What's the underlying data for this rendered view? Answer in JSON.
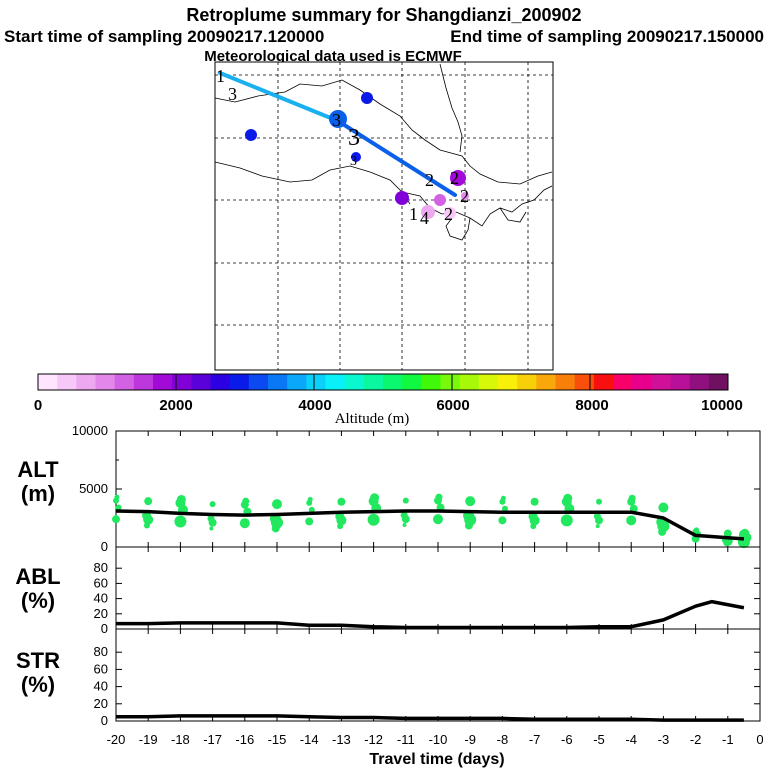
{
  "title": "Retroplume summary for Shangdianzi_200902",
  "start_time": "Start time of sampling 20090217.120000",
  "end_time": "End time of sampling 20090217.150000",
  "met_data": "Meteorological data used is ECMWF",
  "colorbar": {
    "label": "Altitude (m)",
    "tick_labels": [
      "0",
      "2000",
      "4000",
      "6000",
      "8000",
      "10000"
    ],
    "colors": [
      "#ffe5ff",
      "#f7c8f7",
      "#eea8f0",
      "#e388ea",
      "#d262e3",
      "#bd38dc",
      "#a20ad8",
      "#8200d8",
      "#5a00d8",
      "#2c00e0",
      "#0a1ae8",
      "#0a4af0",
      "#0a78f5",
      "#0aa8f8",
      "#0ad0fa",
      "#0af0f8",
      "#0af8d0",
      "#0af8a0",
      "#0af870",
      "#10f840",
      "#40f80a",
      "#78f80a",
      "#a8f80a",
      "#d8f80a",
      "#f8f00a",
      "#f8d00a",
      "#f8a80a",
      "#f8800a",
      "#f8500a",
      "#f81010",
      "#f8006a",
      "#e8008c",
      "#d01098",
      "#b81098",
      "#901080",
      "#701060"
    ]
  },
  "map": {
    "trajectory_labels": [
      "1",
      "3",
      "3",
      "2",
      "2",
      "1",
      "4",
      "2",
      "2",
      "3",
      "3"
    ],
    "line_colors": [
      "#1ab0f0",
      "#0a60e8"
    ]
  },
  "chart_data": [
    {
      "type": "line",
      "name": "ALT",
      "panel_label_top": "ALT",
      "panel_label_bottom": "(m)",
      "ylim": [
        0,
        10000
      ],
      "y_ticks": [
        "10000",
        "5000",
        "0"
      ],
      "x": [
        -20,
        -19,
        -18,
        -17,
        -16,
        -15,
        -14,
        -13,
        -12,
        -11,
        -10,
        -9,
        -8,
        -7,
        -6,
        -5,
        -4,
        -3,
        -2,
        -1,
        -0.5
      ],
      "values": [
        3100,
        3050,
        2900,
        2800,
        2750,
        2800,
        2900,
        3000,
        3050,
        3100,
        3100,
        3050,
        3000,
        3000,
        3000,
        3000,
        3000,
        2500,
        1000,
        800,
        700
      ],
      "scatter_color": "#22e860"
    },
    {
      "type": "line",
      "name": "ABL",
      "panel_label_top": "ABL",
      "panel_label_bottom": "(%)",
      "ylim": [
        0,
        100
      ],
      "y_ticks": [
        "80",
        "60",
        "40",
        "20",
        "0"
      ],
      "x": [
        -20,
        -19,
        -18,
        -17,
        -16,
        -15,
        -14,
        -13,
        -12,
        -11,
        -10,
        -9,
        -8,
        -7,
        -6,
        -5,
        -4,
        -3,
        -2,
        -1.5,
        -0.5
      ],
      "values": [
        7,
        7,
        8,
        8,
        8,
        8,
        5,
        5,
        3,
        2,
        2,
        2,
        2,
        2,
        2,
        3,
        3,
        12,
        30,
        36,
        28
      ]
    },
    {
      "type": "line",
      "name": "STR",
      "panel_label_top": "STR",
      "panel_label_bottom": "(%)",
      "ylim": [
        0,
        100
      ],
      "y_ticks": [
        "80",
        "60",
        "40",
        "20",
        "0"
      ],
      "x_ticks": [
        "-20",
        "-19",
        "-18",
        "-17",
        "-16",
        "-15",
        "-14",
        "-13",
        "-12",
        "-11",
        "-10",
        "-9",
        "-8",
        "-7",
        "-6",
        "-5",
        "-4",
        "-3",
        "-2",
        "-1",
        "0"
      ],
      "xlabel": "Travel time (days)",
      "x": [
        -20,
        -19,
        -18,
        -17,
        -16,
        -15,
        -14,
        -13,
        -12,
        -11,
        -10,
        -9,
        -8,
        -7,
        -6,
        -5,
        -4,
        -3,
        -2,
        -1,
        -0.5
      ],
      "values": [
        5,
        5,
        6,
        6,
        6,
        6,
        5,
        4,
        4,
        3,
        3,
        3,
        3,
        2,
        2,
        2,
        2,
        1,
        1,
        1,
        1
      ]
    }
  ]
}
